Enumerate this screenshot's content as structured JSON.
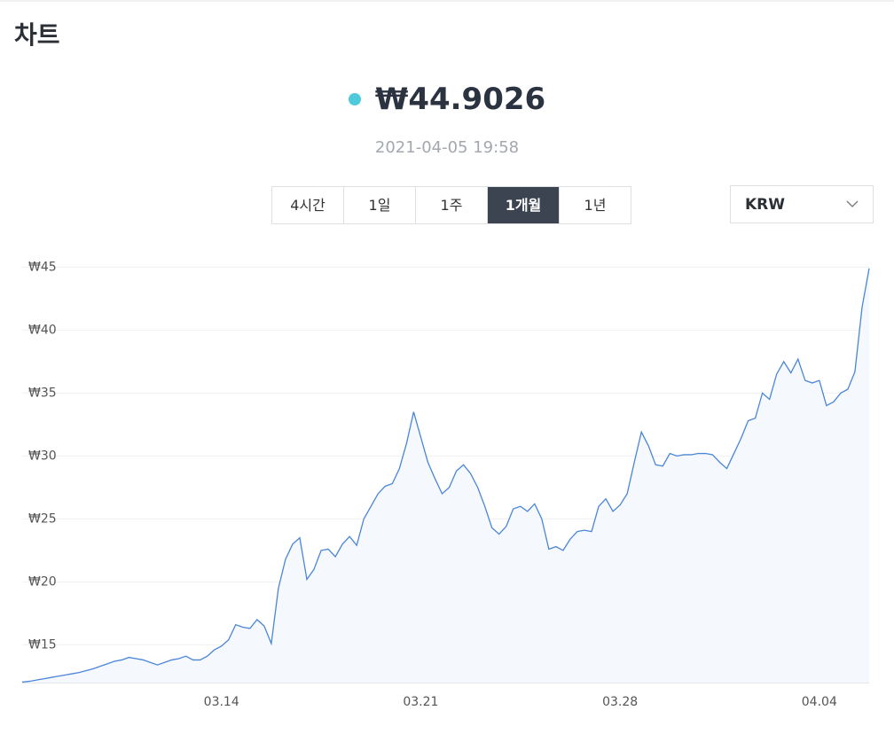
{
  "header": {
    "title": "차트"
  },
  "price": "₩44.9026",
  "timestamp": "2021-04-05 19:58",
  "tabs": [
    "4시간",
    "1일",
    "1주",
    "1개월",
    "1년"
  ],
  "active_tab": 3,
  "currency": "KRW",
  "chart_data": {
    "type": "line",
    "color": "#4a86d8",
    "area_color": "#f5f8fd",
    "grid": true,
    "ylim": [
      12,
      45.8
    ],
    "yticks": [
      {
        "value": 15,
        "label": "₩15"
      },
      {
        "value": 20,
        "label": "₩20"
      },
      {
        "value": 25,
        "label": "₩25"
      },
      {
        "value": 30,
        "label": "₩30"
      },
      {
        "value": 35,
        "label": "₩35"
      },
      {
        "value": 40,
        "label": "₩40"
      },
      {
        "value": 45,
        "label": "₩45"
      }
    ],
    "categories": [
      null,
      null,
      null,
      null,
      null,
      null,
      null,
      null,
      null,
      null,
      null,
      null,
      null,
      null,
      null,
      null,
      null,
      null,
      null,
      null,
      null,
      null,
      null,
      null,
      null,
      null,
      null,
      null,
      "03.14",
      null,
      null,
      null,
      null,
      null,
      null,
      null,
      null,
      null,
      null,
      null,
      null,
      null,
      null,
      null,
      null,
      null,
      null,
      null,
      null,
      null,
      null,
      null,
      null,
      null,
      null,
      null,
      "03.21",
      null,
      null,
      null,
      null,
      null,
      null,
      null,
      null,
      null,
      null,
      null,
      null,
      null,
      null,
      null,
      null,
      null,
      null,
      null,
      null,
      null,
      null,
      null,
      null,
      null,
      null,
      null,
      "03.28",
      null,
      null,
      null,
      null,
      null,
      null,
      null,
      null,
      null,
      null,
      null,
      null,
      null,
      null,
      null,
      null,
      null,
      null,
      null,
      null,
      null,
      null,
      null,
      null,
      null,
      null,
      null,
      "04.04",
      null,
      null,
      null,
      null,
      null,
      null,
      null
    ],
    "values": [
      12.04,
      12.1,
      12.2,
      12.3,
      12.4,
      12.5,
      12.6,
      12.7,
      12.8,
      12.95,
      13.1,
      13.3,
      13.5,
      13.7,
      13.8,
      14.0,
      13.9,
      13.8,
      13.6,
      13.4,
      13.6,
      13.8,
      13.9,
      14.1,
      13.8,
      13.8,
      14.1,
      14.6,
      14.9,
      15.4,
      16.6,
      16.4,
      16.3,
      17.0,
      16.5,
      15.1,
      19.5,
      21.8,
      23.0,
      23.5,
      20.2,
      21.0,
      22.5,
      22.6,
      22.0,
      23.0,
      23.6,
      22.9,
      25.0,
      26.0,
      27.0,
      27.6,
      27.8,
      29.0,
      31.0,
      33.5,
      31.5,
      29.5,
      28.2,
      27.0,
      27.5,
      28.8,
      29.3,
      28.6,
      27.5,
      26.0,
      24.3,
      23.8,
      24.4,
      25.8,
      26.0,
      25.6,
      26.2,
      25.0,
      22.6,
      22.8,
      22.5,
      23.4,
      24.0,
      24.1,
      24.0,
      26.0,
      26.6,
      25.6,
      26.1,
      27.0,
      29.5,
      31.9,
      30.8,
      29.3,
      29.2,
      30.2,
      30.0,
      30.1,
      30.1,
      30.2,
      30.2,
      30.1,
      29.5,
      29.0,
      30.2,
      31.4,
      32.8,
      33.0,
      35.0,
      34.5,
      36.5,
      37.5,
      36.6,
      37.7,
      36.0,
      35.8,
      36.0,
      34.0,
      34.3,
      35.0,
      35.3,
      36.7,
      41.8,
      44.9026
    ]
  }
}
